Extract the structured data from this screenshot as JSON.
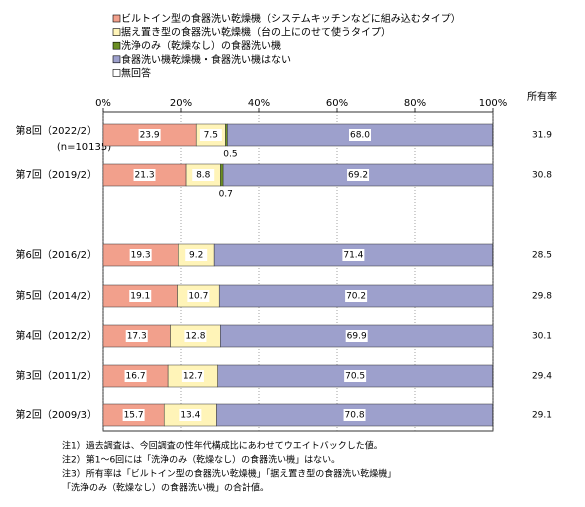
{
  "chart_data": {
    "type": "stacked-barh",
    "categories": [
      "第8回（2022/2）",
      "第7回（2019/2）",
      "第6回（2016/2）",
      "第5回（2014/2）",
      "第4回（2012/2）",
      "第3回（2011/2）",
      "第2回（2009/3）"
    ],
    "category_notes": [
      "(n=10135)",
      null,
      null,
      null,
      null,
      null,
      null
    ],
    "series": [
      {
        "name": "ビルトイン型の食器洗い乾燥機（システムキッチンなどに組み込むタイプ）",
        "color": "#f2a08c",
        "values": [
          23.9,
          21.3,
          19.3,
          19.1,
          17.3,
          16.7,
          15.7
        ]
      },
      {
        "name": "据え置き型の食器洗い乾燥機（台の上にのせて使うタイプ）",
        "color": "#fff4b8",
        "values": [
          7.5,
          8.8,
          9.2,
          10.7,
          12.8,
          12.7,
          13.4
        ]
      },
      {
        "name": "洗浄のみ（乾燥なし）の食器洗い機",
        "color": "#6b8e23",
        "values": [
          0.5,
          0.7,
          null,
          null,
          null,
          null,
          null
        ]
      },
      {
        "name": "食器洗い機乾燥機・食器洗い機はない",
        "color": "#9da0cc",
        "values": [
          68,
          69.2,
          71.4,
          70.2,
          69.9,
          70.5,
          70.8
        ],
        "value_labels": [
          "68.0",
          "69.2",
          "71.4",
          "70.2",
          "69.9",
          "70.5",
          "70.8"
        ]
      },
      {
        "name": "無回答",
        "color": "#ffffff",
        "values": [
          null,
          null,
          null,
          null,
          null,
          null,
          null
        ]
      }
    ],
    "xlim": [
      0,
      100
    ],
    "xticks": [
      {
        "value": 0,
        "label": "0%"
      },
      {
        "value": 20,
        "label": "20%"
      },
      {
        "value": 40,
        "label": "40%"
      },
      {
        "value": 60,
        "label": "60%"
      },
      {
        "value": 80,
        "label": "80%"
      },
      {
        "value": 100,
        "label": "100%"
      }
    ],
    "grid": true,
    "ownership": {
      "title": "所有率",
      "values": [
        31.9,
        30.8,
        28.5,
        29.8,
        30.1,
        29.4,
        29.1
      ]
    },
    "notes": [
      "注1）過去調査は、今回調査の性年代構成比にあわせてウエイトバックした値。",
      "注2）第1～6回には「洗浄のみ（乾燥なし）の食器洗い機」はない。",
      "注3）所有率は「ビルトイン型の食器洗い乾燥機」「据え置き型の食器洗い乾燥機」",
      "「洗浄のみ（乾燥なし）の食器洗い機」の合計値。"
    ]
  }
}
